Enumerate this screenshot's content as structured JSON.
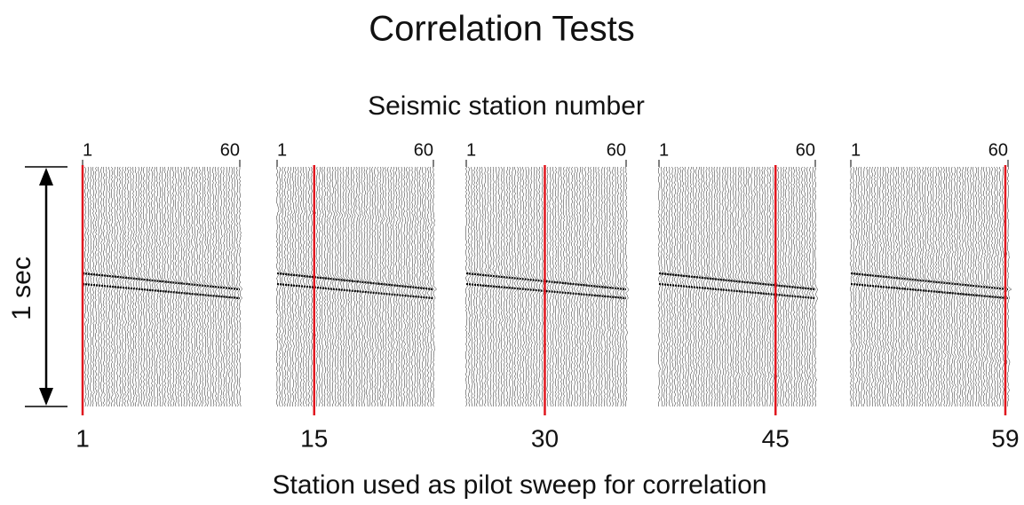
{
  "title": "Correlation Tests",
  "top_axis_label": "Seismic station number",
  "time_label": "1 sec",
  "bottom_axis_label": "Station used as pilot sweep for correlation",
  "panels": [
    {
      "xlim": [
        1,
        60
      ],
      "pilot": 1
    },
    {
      "xlim": [
        1,
        60
      ],
      "pilot": 15
    },
    {
      "xlim": [
        1,
        60
      ],
      "pilot": 30
    },
    {
      "xlim": [
        1,
        60
      ],
      "pilot": 45
    },
    {
      "xlim": [
        1,
        60
      ],
      "pilot": 59
    }
  ]
}
